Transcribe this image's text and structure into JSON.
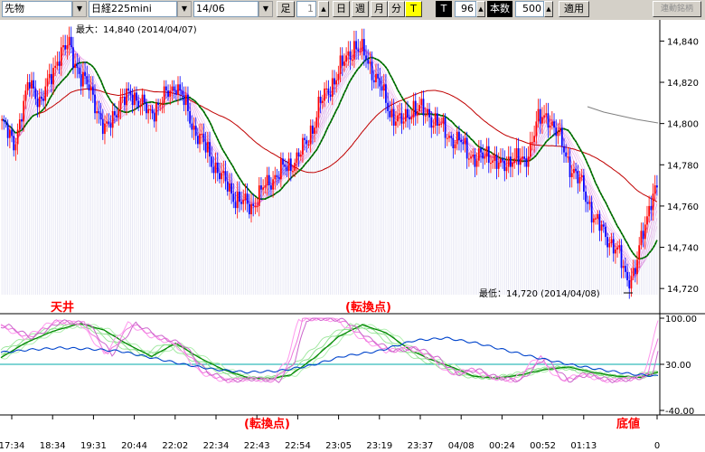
{
  "toolbar": {
    "symbol": "先物",
    "index": "日経225mini",
    "contract": "14/06",
    "leg_label": "足",
    "period_value": "1",
    "day_btn": "日",
    "week_btn": "週",
    "month_btn": "月",
    "minute_btn": "分",
    "tick_btn": "T",
    "t_label": "T",
    "t_value": "96",
    "count_label": "本数",
    "count_value": "500",
    "apply_btn": "適用",
    "connect_btn": "連動銘柄"
  },
  "chart_data": {
    "type": "candlestick",
    "price_axis": {
      "ticks": [
        "14,840",
        "14,820",
        "14,800",
        "14,780",
        "14,760",
        "14,740",
        "14,720"
      ],
      "ylim": [
        14717,
        14845
      ]
    },
    "osc_axis": {
      "ticks": [
        "100.00",
        "30.00",
        "-40.00"
      ]
    },
    "time_ticks": [
      "17:34",
      "18:34",
      "19:31",
      "20:44",
      "22:02",
      "22:34",
      "22:43",
      "22:54",
      "23:05",
      "23:19",
      "23:37",
      "04/08",
      "00:24",
      "00:52",
      "01:13",
      "0"
    ],
    "annotations": {
      "max": "最大：14,840 (2014/04/07)",
      "min": "最低：14,720 (2014/04/08)",
      "top": "天井",
      "turn1": "(転換点)",
      "turn2": "(転換点)",
      "bottom": "底値"
    },
    "colors": {
      "up": "#ff0000",
      "down": "#0000ff",
      "ma_short": "#008000",
      "ma_mid": "#c00000",
      "ma_long": "#808080",
      "bands": "#cc44cc",
      "osc_blue": "#0044cc",
      "osc_teal": "#00aaaa",
      "grid": "#b8b8e0"
    },
    "anchors": [
      [
        0,
        14800
      ],
      [
        6,
        14790
      ],
      [
        14,
        14820
      ],
      [
        20,
        14810
      ],
      [
        28,
        14832
      ],
      [
        34,
        14838
      ],
      [
        40,
        14822
      ],
      [
        46,
        14814
      ],
      [
        52,
        14795
      ],
      [
        58,
        14808
      ],
      [
        66,
        14815
      ],
      [
        74,
        14805
      ],
      [
        82,
        14812
      ],
      [
        88,
        14820
      ],
      [
        96,
        14800
      ],
      [
        104,
        14786
      ],
      [
        112,
        14772
      ],
      [
        120,
        14762
      ],
      [
        126,
        14760
      ],
      [
        132,
        14768
      ],
      [
        138,
        14775
      ],
      [
        146,
        14780
      ],
      [
        154,
        14790
      ],
      [
        160,
        14808
      ],
      [
        166,
        14818
      ],
      [
        172,
        14828
      ],
      [
        178,
        14838
      ],
      [
        184,
        14832
      ],
      [
        190,
        14820
      ],
      [
        196,
        14806
      ],
      [
        202,
        14800
      ],
      [
        208,
        14808
      ],
      [
        216,
        14804
      ],
      [
        224,
        14796
      ],
      [
        232,
        14790
      ],
      [
        240,
        14782
      ],
      [
        246,
        14786
      ],
      [
        252,
        14778
      ],
      [
        258,
        14784
      ],
      [
        264,
        14780
      ],
      [
        270,
        14800
      ],
      [
        276,
        14804
      ],
      [
        282,
        14792
      ],
      [
        288,
        14778
      ],
      [
        294,
        14768
      ],
      [
        300,
        14752
      ],
      [
        306,
        14745
      ],
      [
        312,
        14735
      ],
      [
        316,
        14725
      ],
      [
        320,
        14728
      ],
      [
        324,
        14748
      ],
      [
        328,
        14764
      ],
      [
        331,
        14768
      ]
    ],
    "osc_series": {
      "magenta": [
        [
          0,
          88
        ],
        [
          12,
          70
        ],
        [
          26,
          95
        ],
        [
          40,
          92
        ],
        [
          52,
          45
        ],
        [
          64,
          92
        ],
        [
          76,
          72
        ],
        [
          88,
          60
        ],
        [
          100,
          18
        ],
        [
          112,
          5
        ],
        [
          124,
          8
        ],
        [
          136,
          5
        ],
        [
          144,
          35
        ],
        [
          150,
          98
        ],
        [
          160,
          100
        ],
        [
          170,
          96
        ],
        [
          182,
          68
        ],
        [
          194,
          50
        ],
        [
          206,
          55
        ],
        [
          216,
          40
        ],
        [
          226,
          15
        ],
        [
          236,
          22
        ],
        [
          246,
          10
        ],
        [
          258,
          5
        ],
        [
          270,
          40
        ],
        [
          282,
          5
        ],
        [
          292,
          15
        ],
        [
          304,
          5
        ],
        [
          316,
          8
        ],
        [
          324,
          15
        ],
        [
          331,
          95
        ]
      ],
      "green": [
        [
          0,
          40
        ],
        [
          12,
          62
        ],
        [
          26,
          80
        ],
        [
          40,
          92
        ],
        [
          52,
          82
        ],
        [
          64,
          60
        ],
        [
          76,
          42
        ],
        [
          88,
          62
        ],
        [
          100,
          40
        ],
        [
          112,
          22
        ],
        [
          124,
          10
        ],
        [
          136,
          8
        ],
        [
          146,
          14
        ],
        [
          158,
          40
        ],
        [
          170,
          72
        ],
        [
          182,
          90
        ],
        [
          194,
          78
        ],
        [
          206,
          52
        ],
        [
          216,
          38
        ],
        [
          228,
          25
        ],
        [
          238,
          12
        ],
        [
          250,
          9
        ],
        [
          262,
          14
        ],
        [
          274,
          22
        ],
        [
          286,
          26
        ],
        [
          298,
          18
        ],
        [
          310,
          12
        ],
        [
          322,
          10
        ],
        [
          331,
          18
        ]
      ],
      "blue": [
        [
          0,
          48
        ],
        [
          14,
          52
        ],
        [
          30,
          55
        ],
        [
          46,
          53
        ],
        [
          60,
          50
        ],
        [
          76,
          40
        ],
        [
          92,
          30
        ],
        [
          108,
          22
        ],
        [
          124,
          18
        ],
        [
          140,
          20
        ],
        [
          156,
          28
        ],
        [
          172,
          42
        ],
        [
          190,
          50
        ],
        [
          208,
          66
        ],
        [
          224,
          70
        ],
        [
          240,
          62
        ],
        [
          256,
          50
        ],
        [
          270,
          40
        ],
        [
          286,
          30
        ],
        [
          302,
          22
        ],
        [
          318,
          15
        ],
        [
          331,
          12
        ]
      ]
    }
  }
}
